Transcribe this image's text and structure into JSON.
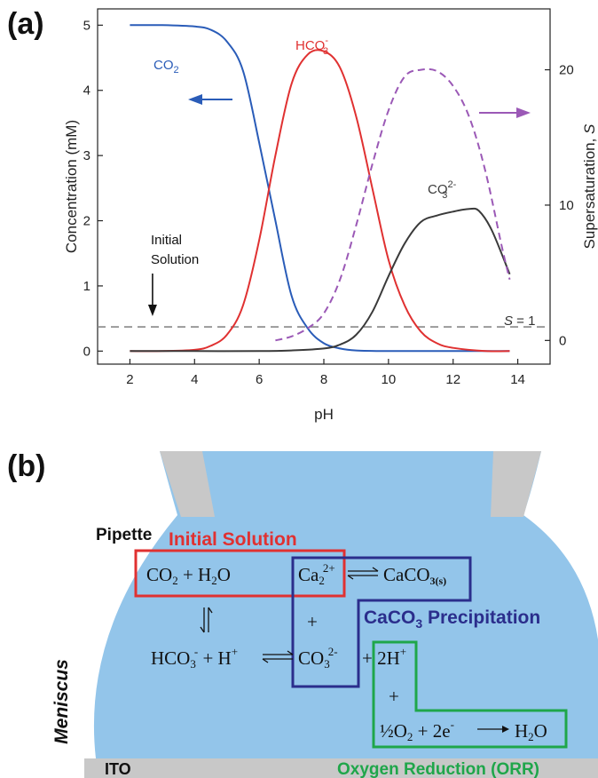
{
  "panel_a": {
    "label": "(a)",
    "chart_data": {
      "type": "line",
      "xlabel": "pH",
      "ylabel_left": "Concentration (mM)",
      "ylabel_right_prefix": "Supersaturation, ",
      "ylabel_right_symbol": "S",
      "xlim": [
        1,
        15
      ],
      "ylim_left": [
        -0.2,
        5.25
      ],
      "ylim_right": [
        -1.75,
        24.5
      ],
      "x_ticks": [
        2,
        4,
        6,
        8,
        10,
        12,
        14
      ],
      "y_left_ticks": [
        0,
        1,
        2,
        3,
        4,
        5
      ],
      "y_right_ticks": [
        0,
        10,
        20
      ],
      "grid": false,
      "series": [
        {
          "name": "CO2",
          "name_main": "CO",
          "name_sub": "2",
          "color": "#2a5cb8",
          "axis": "left",
          "dash": false,
          "x": [
            2,
            3,
            4,
            4.5,
            5,
            5.5,
            6,
            6.5,
            7,
            7.5,
            8,
            8.5,
            9,
            10,
            11,
            12,
            13,
            13.75
          ],
          "y": [
            5.0,
            5.0,
            4.98,
            4.93,
            4.75,
            4.3,
            3.2,
            2.0,
            0.85,
            0.35,
            0.12,
            0.04,
            0.01,
            0.0,
            0.0,
            0.0,
            0.0,
            0.0
          ]
        },
        {
          "name": "HCO3-",
          "name_main": "HCO",
          "name_sub": "3",
          "name_sup": "-",
          "color": "#e03131",
          "axis": "left",
          "dash": false,
          "x": [
            2,
            3,
            4,
            4.5,
            5,
            5.5,
            6,
            6.5,
            7,
            7.5,
            8,
            8.5,
            9,
            9.5,
            10,
            10.5,
            11,
            11.5,
            12,
            13,
            13.75
          ],
          "y": [
            0.0,
            0.0,
            0.02,
            0.08,
            0.25,
            0.7,
            1.7,
            3.0,
            4.1,
            4.55,
            4.6,
            4.35,
            3.6,
            2.5,
            1.4,
            0.7,
            0.3,
            0.12,
            0.05,
            0.0,
            0.0
          ]
        },
        {
          "name": "CO3 2-",
          "name_main": "CO",
          "name_sub": "3",
          "name_sup": "2-",
          "color": "#3a3a3a",
          "axis": "left",
          "dash": false,
          "x": [
            2,
            4,
            6,
            7,
            8,
            8.5,
            9,
            9.5,
            10,
            10.5,
            11,
            11.5,
            12,
            12.5,
            12.8,
            13.2,
            13.75
          ],
          "y": [
            0.0,
            0.0,
            0.0,
            0.01,
            0.04,
            0.1,
            0.25,
            0.6,
            1.15,
            1.65,
            1.98,
            2.08,
            2.14,
            2.18,
            2.15,
            1.85,
            1.18
          ]
        },
        {
          "name": "S",
          "color": "#9b59b6",
          "axis": "right",
          "dash": true,
          "x": [
            6.5,
            7,
            7.5,
            8,
            8.5,
            9,
            9.5,
            10,
            10.5,
            11,
            11.5,
            12,
            12.5,
            13,
            13.5,
            13.75
          ],
          "y": [
            0.0,
            0.3,
            0.9,
            2.0,
            4.5,
            8.5,
            13.0,
            17.0,
            19.5,
            20.0,
            19.9,
            18.8,
            16.5,
            12.5,
            7.0,
            4.5
          ]
        }
      ],
      "reference_line": {
        "y_right": 1,
        "label_symbol": "S",
        "label_rest": " = 1",
        "color": "#888888"
      },
      "annotations": {
        "initial_line1": "Initial",
        "initial_line2": "Solution",
        "initial_arrow_x": 2.7
      }
    }
  },
  "panel_b": {
    "label": "(b)",
    "pipette": "Pipette",
    "meniscus": "Meniscus",
    "ito": "ITO",
    "box_initial_title": "Initial Solution",
    "box_precip_title_main": "CaCO",
    "box_precip_title_sub": "3",
    "box_precip_title_rest": " Precipitation",
    "box_orr_title": "Oxygen Reduction (ORR)",
    "eq_co2": "CO",
    "eq_co2_sub": "2",
    "eq_plus_h2o": " + H",
    "eq_h2o_sub": "2",
    "eq_o": "O",
    "eq_ca": "Ca",
    "eq_ca_sub": "2",
    "eq_ca_sup": "2+",
    "eq_caco3": "CaCO",
    "eq_caco3_sub": "3(s)",
    "eq_plus": "+",
    "eq_hco3": "HCO",
    "eq_hco3_sub": "3",
    "eq_hco3_sup": "-",
    "eq_plus_h": " + H",
    "eq_h_sup": "+",
    "eq_co3": "CO",
    "eq_co3_sub": "3",
    "eq_co3_sup": "2-",
    "eq_plus_2h": "+ 2H",
    "eq_2h_sup": "+",
    "eq_orr_lhs": "½O",
    "eq_orr_o_sub": "2",
    "eq_orr_plus": " + 2e",
    "eq_orr_e_sup": "-",
    "eq_orr_h2o": "H",
    "eq_orr_h2o_sub": "2",
    "eq_orr_h2o_o": "O",
    "colors": {
      "liquid": "#93c5ea",
      "glass": "#c8c8c8",
      "red": "#e03131",
      "navy": "#2b2e8c",
      "green": "#1fa64a"
    }
  }
}
